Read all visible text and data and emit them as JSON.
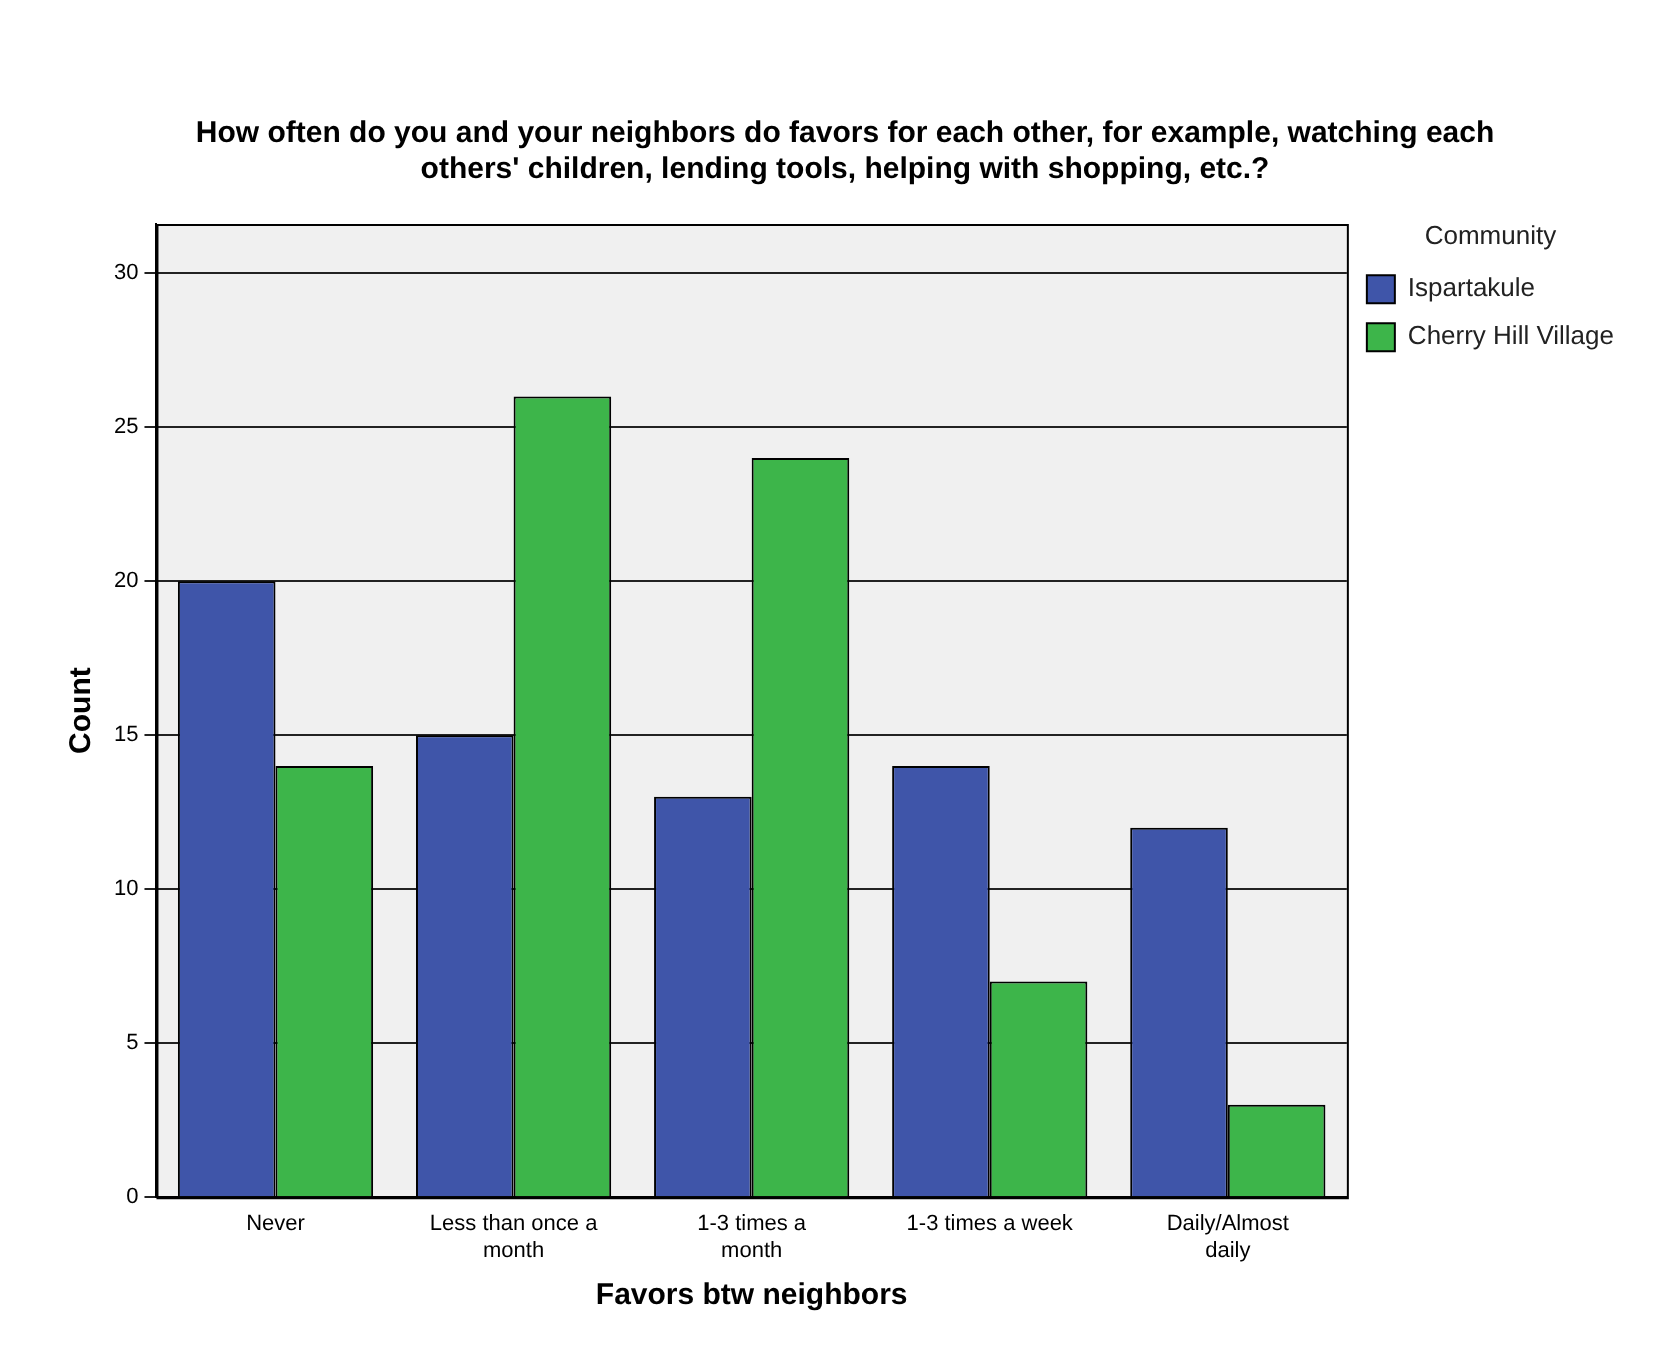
{
  "chart_data": {
    "type": "bar",
    "title": "How often do you and your neighbors do favors for each other, for example, watching each others' children, lending tools, helping with shopping, etc.?",
    "xlabel": "Favors btw neighbors",
    "ylabel": "Count",
    "legend_title": "Community",
    "categories": [
      "Never",
      "Less than once a month",
      "1-3 times a month",
      "1-3 times a week",
      "Daily/Almost daily"
    ],
    "series": [
      {
        "name": "Ispartakule",
        "color": "#3f55a9",
        "values": [
          20,
          15,
          13,
          14,
          12
        ]
      },
      {
        "name": "Cherry Hill Village",
        "color": "#3db54a",
        "values": [
          14,
          26,
          24,
          7,
          3
        ]
      }
    ],
    "ylim": [
      0,
      31.6
    ],
    "yticks": [
      0,
      5,
      10,
      15,
      20,
      25,
      30
    ],
    "grid": "y",
    "legend": "right"
  }
}
